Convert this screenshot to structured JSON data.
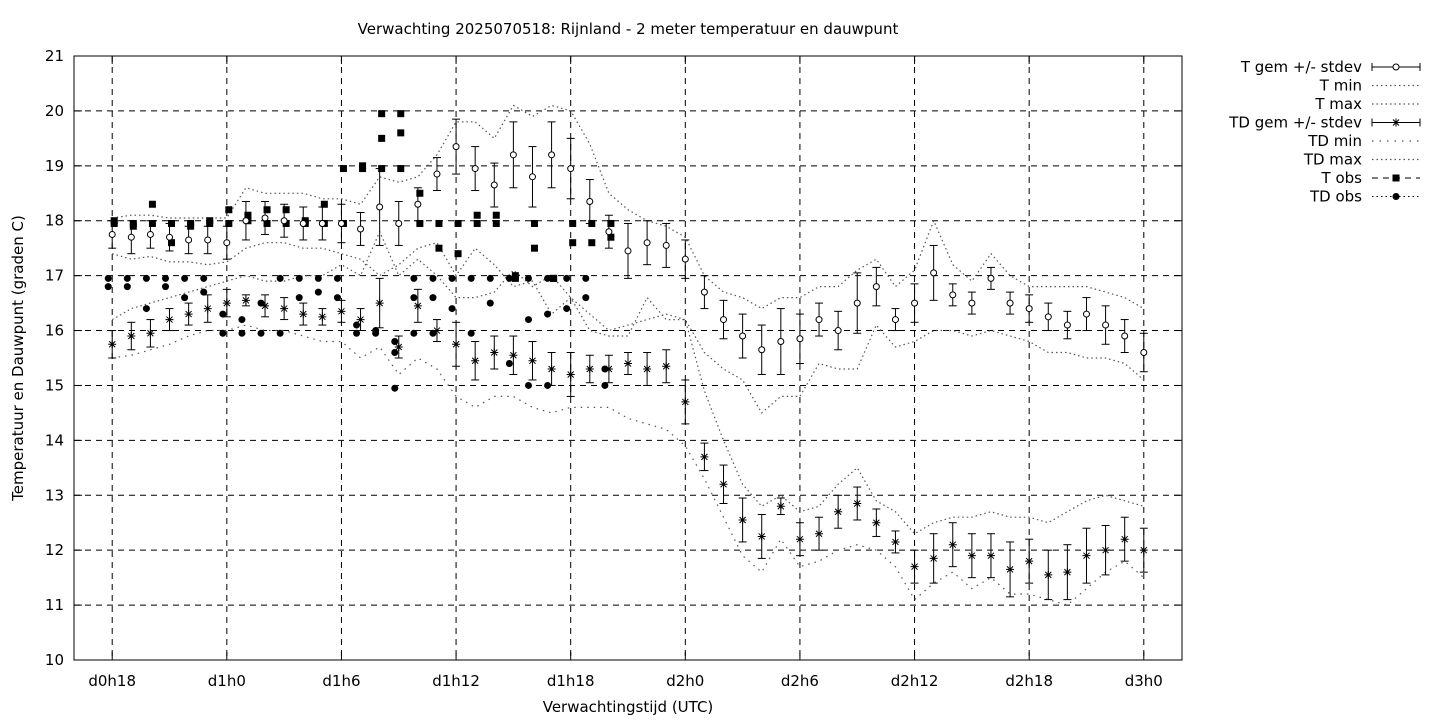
{
  "chart_data": {
    "type": "scatter",
    "title": "Verwachting 2025070518: Rijnland - 2 meter temperatuur en dauwpunt",
    "xlabel": "Verwachtingstijd (UTC)",
    "ylabel": "Temperatuur en Dauwpunt (graden C)",
    "x_unit": "hours since d0h0",
    "xlim": [
      16,
      74
    ],
    "ylim": [
      10,
      21
    ],
    "yticks": [
      10,
      11,
      12,
      13,
      14,
      15,
      16,
      17,
      18,
      19,
      20,
      21
    ],
    "xticks": [
      {
        "x": 18,
        "label": "d0h18"
      },
      {
        "x": 24,
        "label": "d1h0"
      },
      {
        "x": 30,
        "label": "d1h6"
      },
      {
        "x": 36,
        "label": "d1h12"
      },
      {
        "x": 42,
        "label": "d1h18"
      },
      {
        "x": 48,
        "label": "d2h0"
      },
      {
        "x": 54,
        "label": "d2h6"
      },
      {
        "x": 60,
        "label": "d2h12"
      },
      {
        "x": 66,
        "label": "d2h18"
      },
      {
        "x": 72,
        "label": "d3h0"
      }
    ],
    "grid": true,
    "legend_position": "outside-right",
    "legend": [
      {
        "label": "T gem +/- stdev",
        "style": "errorbar-circle"
      },
      {
        "label": "T min",
        "style": "dotted"
      },
      {
        "label": "T max",
        "style": "dotted"
      },
      {
        "label": "TD gem +/- stdev",
        "style": "errorbar-star"
      },
      {
        "label": "TD min",
        "style": "dotted-sparse"
      },
      {
        "label": "TD max",
        "style": "dotted"
      },
      {
        "label": "T obs",
        "style": "square-dashed"
      },
      {
        "label": "TD obs",
        "style": "dot-dotted"
      }
    ],
    "t_mean": {
      "x": [
        18,
        19,
        20,
        21,
        22,
        23,
        24,
        25,
        26,
        27,
        28,
        29,
        30,
        31,
        32,
        33,
        34,
        35,
        36,
        37,
        38,
        39,
        40,
        41,
        42,
        43,
        44,
        45,
        46,
        47,
        48,
        49,
        50,
        51,
        52,
        53,
        54,
        55,
        56,
        57,
        58,
        59,
        60,
        61,
        62,
        63,
        64,
        65,
        66,
        67,
        68,
        69,
        70,
        71,
        72
      ],
      "mean": [
        17.75,
        17.7,
        17.75,
        17.7,
        17.65,
        17.65,
        17.6,
        18.0,
        18.05,
        18.0,
        17.95,
        17.95,
        17.95,
        17.85,
        18.25,
        17.95,
        18.3,
        18.85,
        19.35,
        18.95,
        18.65,
        19.2,
        18.8,
        19.2,
        18.95,
        18.35,
        17.8,
        17.45,
        17.6,
        17.55,
        17.3,
        16.7,
        16.2,
        15.9,
        15.65,
        15.8,
        15.85,
        16.2,
        16.0,
        16.5,
        16.8,
        16.2,
        16.5,
        17.05,
        16.65,
        16.5,
        16.95,
        16.5,
        16.4,
        16.25,
        16.1,
        16.3,
        16.1,
        15.9,
        15.6
      ],
      "stdev": [
        0.25,
        0.3,
        0.25,
        0.25,
        0.25,
        0.25,
        0.3,
        0.35,
        0.3,
        0.3,
        0.3,
        0.3,
        0.35,
        0.3,
        0.7,
        0.4,
        0.3,
        0.3,
        0.5,
        0.4,
        0.4,
        0.6,
        0.55,
        0.6,
        0.55,
        0.4,
        0.3,
        0.5,
        0.4,
        0.4,
        0.35,
        0.3,
        0.35,
        0.4,
        0.45,
        0.6,
        0.45,
        0.3,
        0.35,
        0.55,
        0.35,
        0.2,
        0.35,
        0.5,
        0.2,
        0.2,
        0.2,
        0.2,
        0.25,
        0.25,
        0.25,
        0.3,
        0.35,
        0.3,
        0.35
      ]
    },
    "t_min": {
      "x": [
        18,
        19,
        20,
        21,
        22,
        23,
        24,
        25,
        26,
        27,
        28,
        29,
        30,
        31,
        32,
        33,
        34,
        35,
        36,
        37,
        38,
        39,
        40,
        41,
        42,
        43,
        44,
        45,
        46,
        47,
        48,
        49,
        50,
        51,
        52,
        53,
        54,
        55,
        56,
        57,
        58,
        59,
        60,
        61,
        62,
        63,
        64,
        65,
        66,
        67,
        68,
        69,
        70,
        71,
        72
      ],
      "values": [
        17.4,
        17.3,
        17.35,
        17.25,
        17.25,
        17.2,
        17.25,
        17.5,
        17.6,
        17.6,
        17.5,
        17.5,
        17.4,
        17.3,
        17.0,
        17.2,
        17.5,
        17.6,
        17.0,
        17.5,
        17.2,
        16.8,
        16.9,
        16.3,
        16.6,
        16.0,
        15.9,
        15.9,
        16.6,
        16.2,
        16.2,
        15.6,
        15.3,
        15.1,
        14.5,
        14.8,
        14.8,
        15.4,
        15.3,
        15.3,
        16.1,
        15.7,
        15.8,
        16.0,
        16.0,
        15.9,
        16.0,
        15.9,
        15.8,
        15.6,
        15.6,
        15.5,
        15.5,
        15.4,
        15.1
      ]
    },
    "t_max": {
      "x": [
        18,
        19,
        20,
        21,
        22,
        23,
        24,
        25,
        26,
        27,
        28,
        29,
        30,
        31,
        32,
        33,
        34,
        35,
        36,
        37,
        38,
        39,
        40,
        41,
        42,
        43,
        44,
        45,
        46,
        47,
        48,
        49,
        50,
        51,
        52,
        53,
        54,
        55,
        56,
        57,
        58,
        59,
        60,
        61,
        62,
        63,
        64,
        65,
        66,
        67,
        68,
        69,
        70,
        71,
        72
      ],
      "values": [
        18.05,
        18.1,
        18.1,
        18.05,
        18.05,
        18.05,
        18.05,
        18.6,
        18.5,
        18.5,
        18.5,
        18.4,
        18.4,
        18.3,
        18.8,
        18.7,
        18.8,
        19.2,
        19.8,
        19.8,
        19.5,
        20.1,
        19.9,
        20.1,
        20.0,
        19.4,
        18.5,
        18.2,
        18.0,
        17.9,
        17.7,
        17.0,
        16.7,
        16.6,
        16.4,
        16.6,
        16.6,
        16.8,
        16.8,
        17.1,
        17.3,
        16.8,
        17.1,
        18.0,
        17.2,
        16.9,
        17.4,
        17.0,
        16.8,
        16.8,
        16.8,
        16.8,
        16.7,
        16.6,
        16.4
      ]
    },
    "td_mean": {
      "x": [
        18,
        19,
        20,
        21,
        22,
        23,
        24,
        25,
        26,
        27,
        28,
        29,
        30,
        31,
        32,
        33,
        34,
        35,
        36,
        37,
        38,
        39,
        40,
        41,
        42,
        43,
        44,
        45,
        46,
        47,
        48,
        49,
        50,
        51,
        52,
        53,
        54,
        55,
        56,
        57,
        58,
        59,
        60,
        61,
        62,
        63,
        64,
        65,
        66,
        67,
        68,
        69,
        70,
        71,
        72
      ],
      "mean": [
        15.75,
        15.9,
        15.95,
        16.2,
        16.3,
        16.4,
        16.5,
        16.55,
        16.45,
        16.4,
        16.3,
        16.25,
        16.35,
        16.2,
        16.5,
        15.7,
        16.45,
        16.0,
        15.75,
        15.45,
        15.6,
        15.55,
        15.45,
        15.3,
        15.2,
        15.3,
        15.3,
        15.4,
        15.3,
        15.35,
        14.7,
        13.7,
        13.2,
        12.55,
        12.25,
        12.8,
        12.2,
        12.3,
        12.7,
        12.85,
        12.5,
        12.15,
        11.7,
        11.85,
        12.1,
        11.9,
        11.9,
        11.65,
        11.8,
        11.55,
        11.6,
        11.9,
        12.0,
        12.2,
        12.0
      ]
    },
    "td_stdev": [
      0.25,
      0.25,
      0.25,
      0.2,
      0.2,
      0.25,
      0.25,
      0.1,
      0.2,
      0.2,
      0.2,
      0.15,
      0.2,
      0.2,
      0.45,
      0.2,
      0.3,
      0.2,
      0.4,
      0.35,
      0.3,
      0.35,
      0.35,
      0.3,
      0.4,
      0.25,
      0.25,
      0.2,
      0.3,
      0.3,
      0.4,
      0.25,
      0.35,
      0.4,
      0.4,
      0.15,
      0.3,
      0.3,
      0.3,
      0.3,
      0.25,
      0.2,
      0.3,
      0.45,
      0.4,
      0.4,
      0.4,
      0.5,
      0.4,
      0.45,
      0.5,
      0.5,
      0.45,
      0.4,
      0.4
    ],
    "td_min": {
      "x": [
        18,
        19,
        20,
        21,
        22,
        23,
        24,
        25,
        26,
        27,
        28,
        29,
        30,
        31,
        32,
        33,
        34,
        35,
        36,
        37,
        38,
        39,
        40,
        41,
        42,
        43,
        44,
        45,
        46,
        47,
        48,
        49,
        50,
        51,
        52,
        53,
        54,
        55,
        56,
        57,
        58,
        59,
        60,
        61,
        62,
        63,
        64,
        65,
        66,
        67,
        68,
        69,
        70,
        71,
        72
      ],
      "values": [
        15.5,
        15.55,
        15.65,
        15.75,
        15.9,
        16.0,
        16.0,
        16.1,
        16.0,
        16.0,
        15.9,
        15.8,
        15.8,
        15.5,
        15.7,
        15.2,
        15.5,
        15.3,
        14.8,
        14.6,
        14.8,
        14.8,
        14.6,
        14.5,
        14.6,
        14.6,
        14.6,
        14.4,
        14.3,
        14.2,
        13.9,
        13.3,
        12.6,
        11.9,
        11.6,
        12.2,
        11.7,
        11.8,
        12.0,
        12.1,
        12.0,
        11.7,
        11.1,
        11.4,
        11.6,
        11.3,
        11.5,
        11.2,
        11.2,
        11.1,
        11.0,
        11.3,
        11.6,
        11.8,
        11.5
      ]
    },
    "td_max": {
      "x": [
        18,
        19,
        20,
        21,
        22,
        23,
        24,
        25,
        26,
        27,
        28,
        29,
        30,
        31,
        32,
        33,
        34,
        35,
        36,
        37,
        38,
        39,
        40,
        41,
        42,
        43,
        44,
        45,
        46,
        47,
        48,
        49,
        50,
        51,
        52,
        53,
        54,
        55,
        56,
        57,
        58,
        59,
        60,
        61,
        62,
        63,
        64,
        65,
        66,
        67,
        68,
        69,
        70,
        71,
        72
      ],
      "values": [
        16.2,
        16.4,
        16.5,
        16.6,
        16.7,
        16.8,
        16.9,
        17.0,
        16.9,
        16.9,
        17.0,
        17.0,
        17.2,
        17.0,
        17.8,
        17.0,
        17.3,
        17.0,
        16.6,
        16.6,
        16.7,
        17.1,
        16.8,
        17.0,
        16.6,
        16.3,
        16.0,
        16.1,
        16.2,
        16.3,
        16.2,
        14.9,
        14.0,
        13.2,
        12.8,
        13.0,
        12.7,
        12.8,
        13.2,
        13.5,
        12.9,
        12.7,
        12.3,
        12.5,
        12.6,
        12.6,
        12.7,
        12.6,
        12.6,
        12.5,
        12.7,
        12.9,
        13.0,
        12.9,
        12.8
      ]
    },
    "t_obs": {
      "x": [
        18,
        18,
        19,
        19,
        20,
        20,
        21,
        21,
        22,
        22,
        23,
        23,
        24,
        24,
        25,
        25,
        26,
        26,
        27,
        27,
        28,
        28,
        29,
        29,
        30,
        30,
        31,
        31,
        32,
        32,
        32,
        33,
        33,
        33,
        34,
        34,
        35,
        35,
        36,
        36,
        37,
        37,
        38,
        38,
        39,
        39,
        40,
        40,
        41,
        41,
        42,
        42,
        43,
        43,
        44,
        44
      ],
      "values": [
        17.95,
        18.0,
        17.95,
        17.9,
        17.95,
        18.3,
        17.95,
        17.6,
        17.9,
        17.95,
        18.0,
        17.95,
        17.95,
        18.2,
        18.0,
        18.1,
        17.95,
        18.2,
        17.95,
        18.2,
        17.95,
        18.0,
        17.95,
        18.3,
        17.95,
        18.95,
        18.95,
        19.0,
        18.95,
        19.5,
        19.95,
        18.95,
        19.6,
        19.95,
        17.95,
        18.5,
        17.5,
        17.95,
        17.95,
        17.4,
        17.95,
        18.1,
        17.95,
        18.1,
        16.95,
        17.0,
        17.5,
        17.95,
        16.95,
        16.95,
        17.95,
        17.6,
        17.95,
        17.6,
        17.7,
        17.95
      ]
    },
    "td_obs": {
      "x": [
        18,
        18,
        19,
        19,
        20,
        20,
        21,
        21,
        22,
        22,
        23,
        23,
        24,
        24,
        25,
        25,
        26,
        26,
        27,
        27,
        28,
        28,
        29,
        29,
        30,
        30,
        31,
        31,
        32,
        32,
        33,
        33,
        33,
        34,
        34,
        34,
        35,
        35,
        35,
        36,
        36,
        37,
        37,
        38,
        38,
        39,
        39,
        40,
        40,
        40,
        41,
        41,
        41,
        42,
        42,
        43,
        43,
        44,
        44
      ],
      "values": [
        16.8,
        16.95,
        16.8,
        16.95,
        16.4,
        16.95,
        16.8,
        16.95,
        16.6,
        16.95,
        16.7,
        16.95,
        16.3,
        15.95,
        16.2,
        15.95,
        16.5,
        15.95,
        16.95,
        15.95,
        16.95,
        16.6,
        16.7,
        16.95,
        16.95,
        16.6,
        16.1,
        15.95,
        16.0,
        15.95,
        15.6,
        15.8,
        14.95,
        16.95,
        16.6,
        15.95,
        16.95,
        16.6,
        15.95,
        16.95,
        16.4,
        16.95,
        15.95,
        16.95,
        16.5,
        16.95,
        15.4,
        16.95,
        16.2,
        15.0,
        16.95,
        16.3,
        15.0,
        16.95,
        16.4,
        16.95,
        16.6,
        15.3,
        15.0
      ]
    }
  }
}
